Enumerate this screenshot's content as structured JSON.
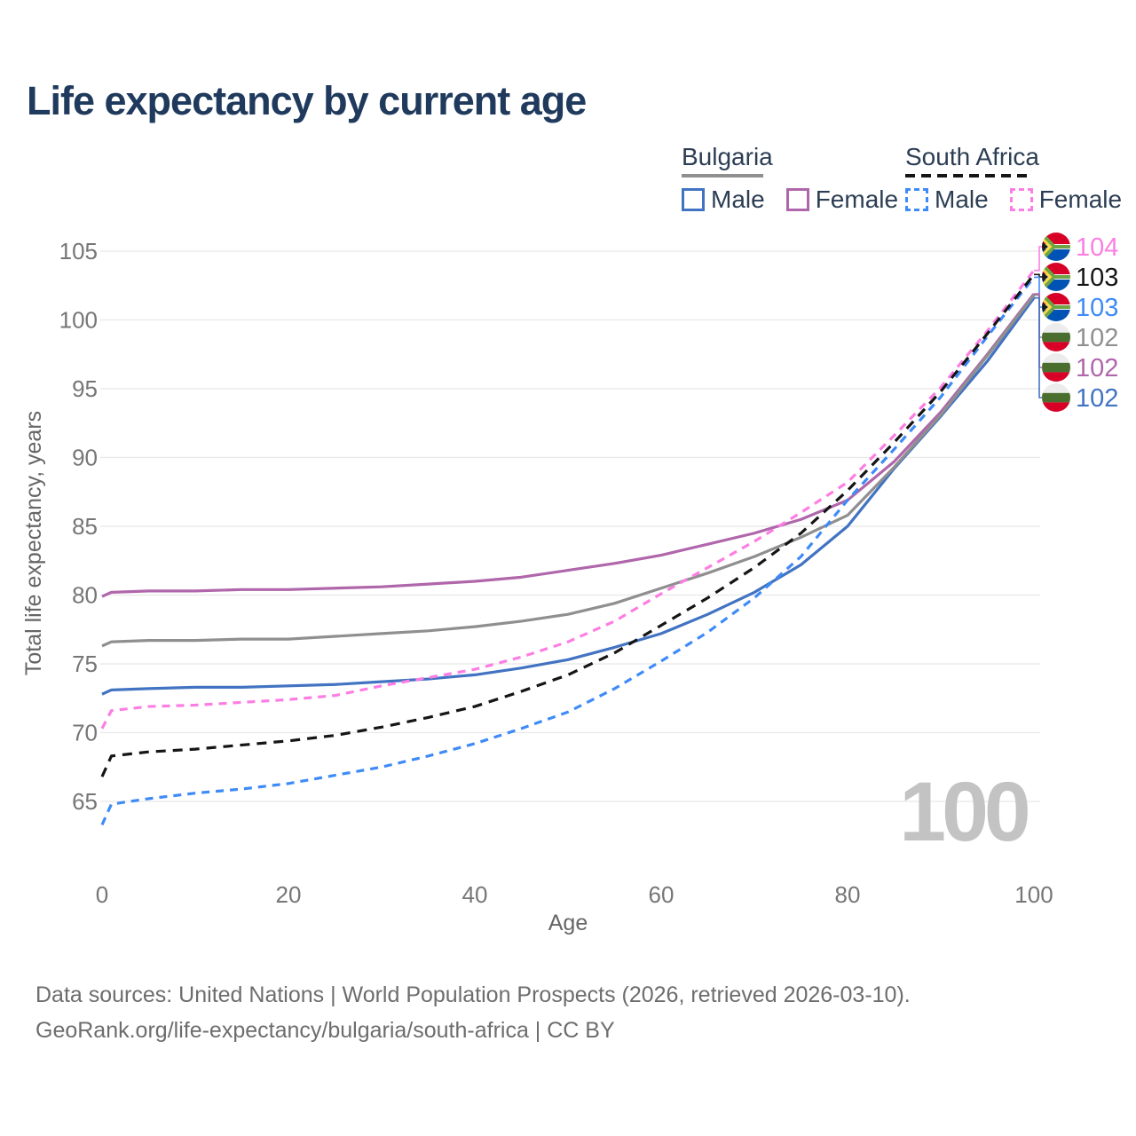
{
  "title": "Life expectancy by current age",
  "legend": {
    "groups": [
      {
        "country": "Bulgaria",
        "line_style": "solid",
        "underline_color": "#8f8f8f",
        "items": [
          {
            "label": "Male",
            "color": "#4273c2"
          },
          {
            "label": "Female",
            "color": "#b066ab"
          }
        ]
      },
      {
        "country": "South Africa",
        "line_style": "dashed",
        "underline_color": "#151515",
        "items": [
          {
            "label": "Male",
            "color": "#3e8bf7"
          },
          {
            "label": "Female",
            "color": "#fc7ee3"
          }
        ]
      }
    ]
  },
  "watermark_age": "100",
  "chart_data": {
    "type": "line",
    "title": "Life expectancy by current age",
    "xlabel": "Age",
    "ylabel": "Total life expectancy, years",
    "x_ticks": [
      0,
      20,
      40,
      60,
      80,
      100
    ],
    "y_ticks": [
      65,
      70,
      75,
      80,
      85,
      90,
      95,
      100,
      105
    ],
    "xlim": [
      0,
      100
    ],
    "ylim": [
      63,
      106
    ],
    "grid": true,
    "legend_position": "top-right",
    "x": [
      0,
      1,
      5,
      10,
      15,
      20,
      25,
      30,
      35,
      40,
      45,
      50,
      55,
      60,
      65,
      70,
      75,
      80,
      85,
      90,
      95,
      100
    ],
    "series": [
      {
        "name": "Bulgaria Male",
        "country": "Bulgaria",
        "sex": "Male",
        "style": "solid",
        "color": "#4273c2",
        "flag": "bg",
        "end_label": "102",
        "values": [
          72.8,
          73.1,
          73.2,
          73.3,
          73.3,
          73.4,
          73.5,
          73.7,
          73.9,
          74.2,
          74.7,
          75.3,
          76.2,
          77.2,
          78.6,
          80.2,
          82.2,
          85.0,
          89.2,
          93.0,
          97.0,
          101.6
        ]
      },
      {
        "name": "Bulgaria Female",
        "country": "Bulgaria",
        "sex": "Female",
        "style": "solid",
        "color": "#b066ab",
        "flag": "bg",
        "end_label": "102",
        "values": [
          79.9,
          80.2,
          80.3,
          80.3,
          80.4,
          80.4,
          80.5,
          80.6,
          80.8,
          81.0,
          81.3,
          81.8,
          82.3,
          82.9,
          83.7,
          84.5,
          85.5,
          86.9,
          89.7,
          93.3,
          97.5,
          101.9
        ]
      },
      {
        "name": "Bulgaria",
        "country": "Bulgaria",
        "sex": "Both",
        "style": "solid",
        "color": "#8f8f8f",
        "flag": "bg",
        "end_label": "102",
        "values": [
          76.3,
          76.6,
          76.7,
          76.7,
          76.8,
          76.8,
          77.0,
          77.2,
          77.4,
          77.7,
          78.1,
          78.6,
          79.4,
          80.5,
          81.6,
          82.8,
          84.2,
          85.8,
          89.3,
          93.1,
          97.4,
          101.8
        ]
      },
      {
        "name": "South Africa Male",
        "country": "South Africa",
        "sex": "Male",
        "style": "dashed",
        "color": "#3e8bf7",
        "flag": "za",
        "end_label": "103",
        "values": [
          63.3,
          64.8,
          65.2,
          65.6,
          65.9,
          66.3,
          66.9,
          67.5,
          68.3,
          69.2,
          70.3,
          71.5,
          73.2,
          75.2,
          77.3,
          79.8,
          82.8,
          86.9,
          90.6,
          94.4,
          98.8,
          103.1
        ]
      },
      {
        "name": "South Africa Female",
        "country": "South Africa",
        "sex": "Female",
        "style": "dashed",
        "color": "#fc7ee3",
        "flag": "za",
        "end_label": "104",
        "values": [
          70.3,
          71.6,
          71.9,
          72.0,
          72.2,
          72.4,
          72.7,
          73.4,
          74.0,
          74.6,
          75.5,
          76.6,
          78.1,
          80.1,
          82.0,
          83.9,
          86.0,
          88.2,
          91.6,
          95.1,
          99.2,
          103.6
        ]
      },
      {
        "name": "South Africa",
        "country": "South Africa",
        "sex": "Both",
        "style": "dashed",
        "color": "#151515",
        "flag": "za",
        "end_label": "103",
        "values": [
          66.8,
          68.3,
          68.6,
          68.8,
          69.1,
          69.4,
          69.8,
          70.4,
          71.1,
          71.9,
          73.0,
          74.2,
          75.8,
          77.8,
          79.8,
          82.0,
          84.5,
          87.6,
          91.1,
          94.8,
          99.0,
          103.3
        ]
      }
    ],
    "end_labels_order": [
      4,
      5,
      3,
      2,
      1,
      0
    ]
  },
  "footer": {
    "line1": "Data sources: United Nations | World Population Prospects (2026, retrieved 2026-03-10).",
    "line2": "GeoRank.org/life-expectancy/bulgaria/south-africa | CC BY"
  }
}
